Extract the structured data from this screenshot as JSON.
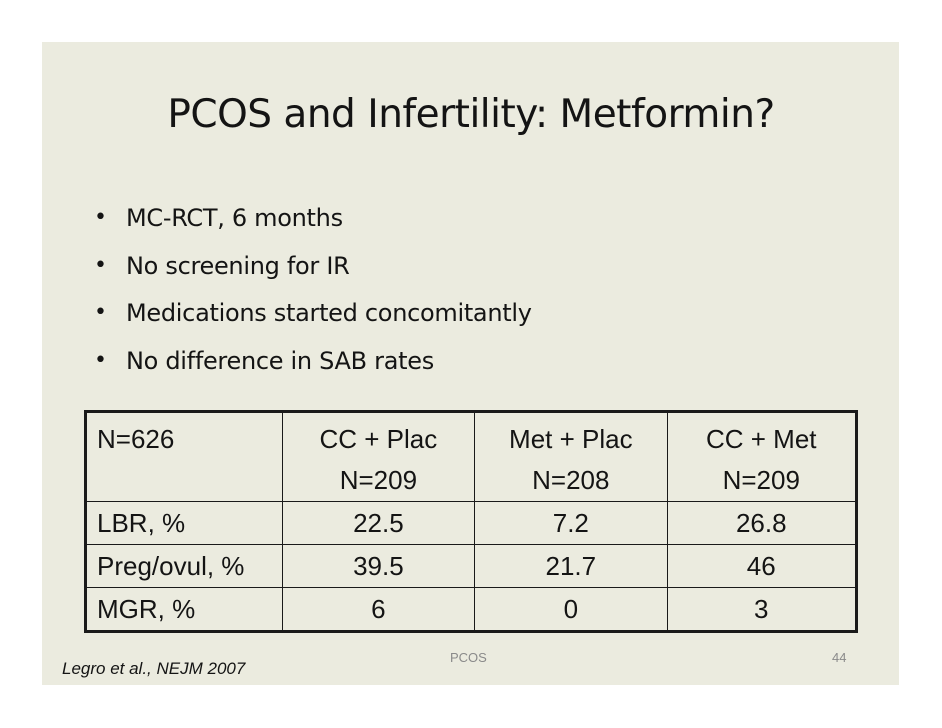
{
  "slide": {
    "title": "PCOS and Infertility: Metformin?",
    "bullets": [
      "MC-RCT, 6 months",
      "No screening for IR",
      "Medications started concomitantly",
      "No difference in SAB rates"
    ],
    "bullet_glyph": "•",
    "table": {
      "header": {
        "label": "N=626",
        "cols": [
          {
            "line1": "CC + Plac",
            "line2": "N=209"
          },
          {
            "line1": "Met + Plac",
            "line2": "N=208"
          },
          {
            "line1": "CC + Met",
            "line2": "N=209"
          }
        ]
      },
      "rows": [
        {
          "label": "LBR, %",
          "values": [
            "22.5",
            "7.2",
            "26.8"
          ]
        },
        {
          "label": "Preg/ovul, %",
          "values": [
            "39.5",
            "21.7",
            "46"
          ]
        },
        {
          "label": "MGR, %",
          "values": [
            "6",
            "0",
            "3"
          ]
        }
      ]
    },
    "footer_center": "PCOS",
    "page_number": "44",
    "citation": "Legro et al., NEJM 2007"
  }
}
